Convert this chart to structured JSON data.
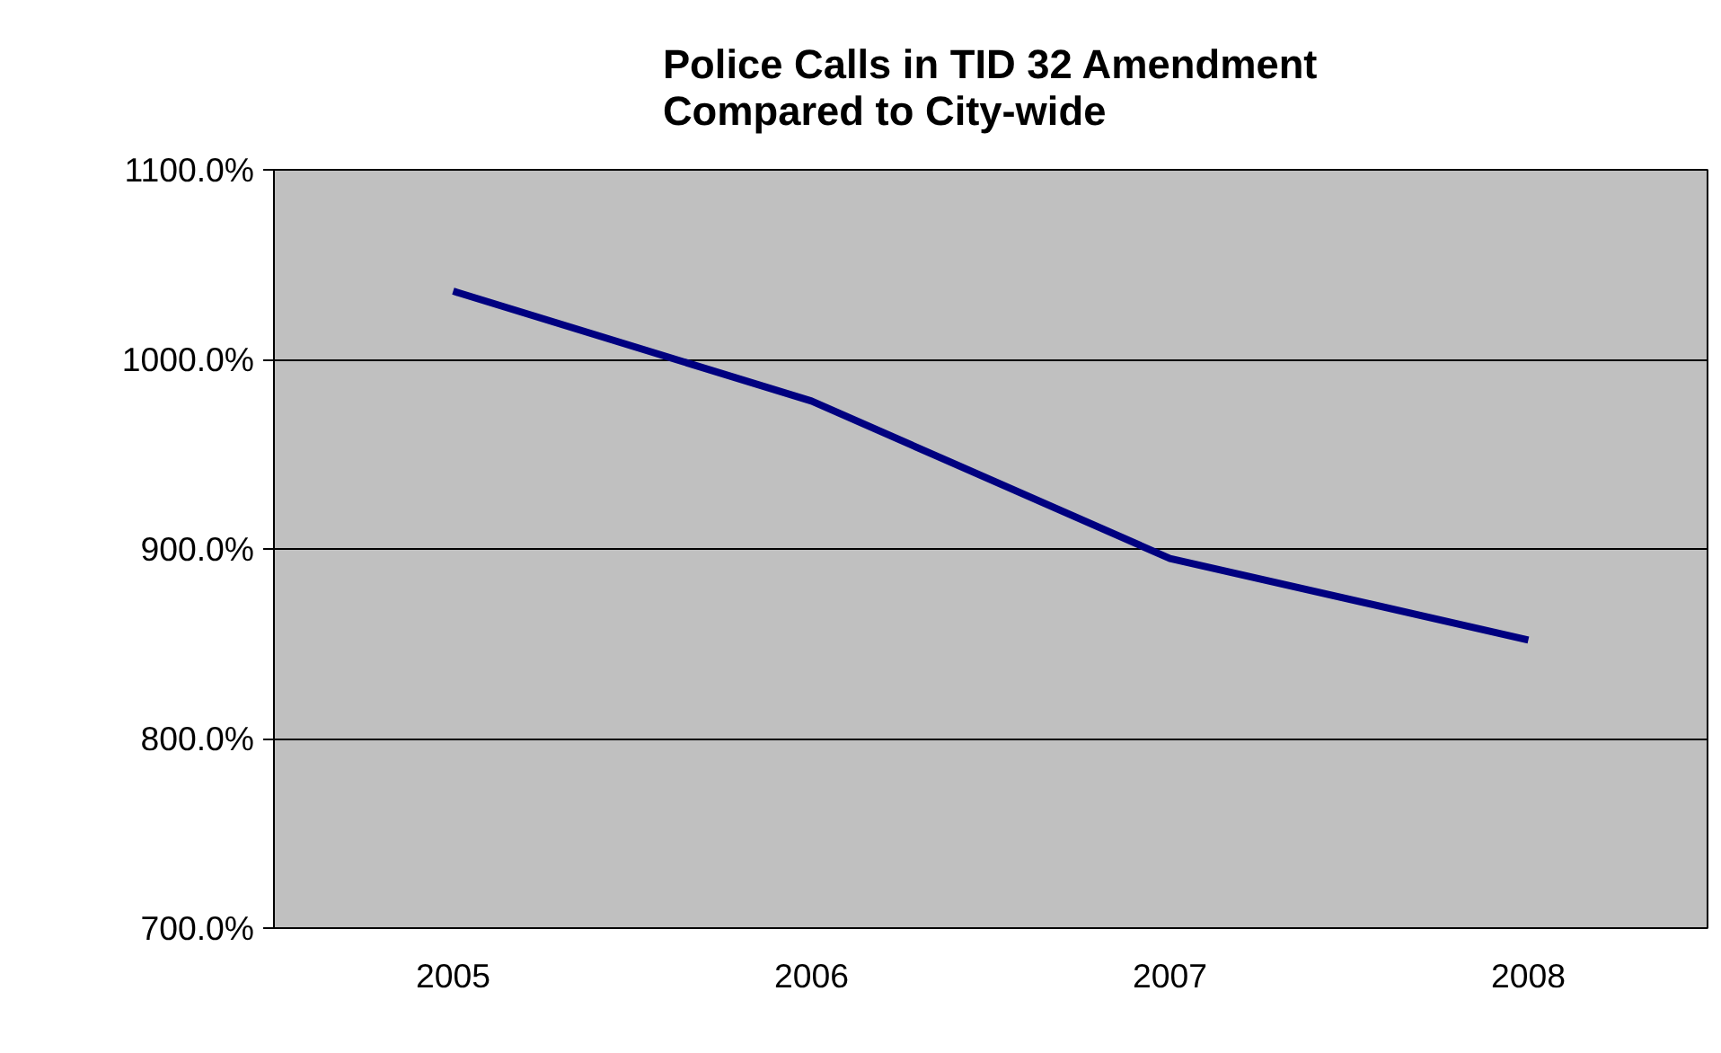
{
  "chart_data": {
    "type": "line",
    "title": "Police Calls in TID 32 Amendment\nCompared to City-wide",
    "categories": [
      "2005",
      "2006",
      "2007",
      "2008"
    ],
    "series": [
      {
        "color": "#000080",
        "values": [
          1036,
          978,
          895,
          852
        ]
      }
    ],
    "ylim": [
      700,
      1100
    ],
    "yticks": [
      {
        "value": 700,
        "label": "700.0%"
      },
      {
        "value": 800,
        "label": "800.0%"
      },
      {
        "value": 900,
        "label": "900.0%"
      },
      {
        "value": 1000,
        "label": "1000.0%"
      },
      {
        "value": 1100,
        "label": "1100.0%"
      }
    ],
    "grid": "y",
    "marker": "none",
    "line_style": "solid"
  }
}
